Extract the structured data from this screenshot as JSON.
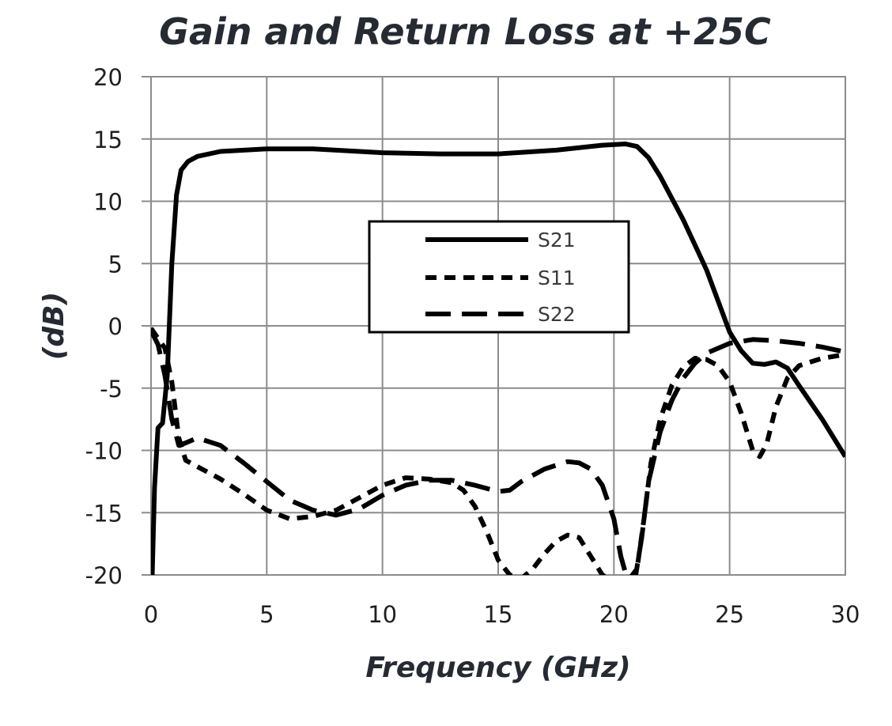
{
  "chart_data": {
    "type": "line",
    "title": "Gain and Return Loss at +25C",
    "xlabel": "Frequency (GHz)",
    "ylabel": "(dB)",
    "xlim": [
      0,
      30
    ],
    "ylim": [
      -20,
      20
    ],
    "xticks": [
      "0",
      "5",
      "10",
      "15",
      "20",
      "25",
      "30"
    ],
    "yticks": [
      "20",
      "15",
      "10",
      "5",
      "0",
      "-5",
      "-10",
      "-15",
      "-20"
    ],
    "grid": true,
    "legend_position": "center",
    "series": [
      {
        "name": "S21",
        "style": "solid",
        "x": [
          0.05,
          0.15,
          0.3,
          0.5,
          0.7,
          0.9,
          1.1,
          1.3,
          1.6,
          2.0,
          3.0,
          5.0,
          7.0,
          10.0,
          12.5,
          15.0,
          17.5,
          19.5,
          20.5,
          21.0,
          21.5,
          22.0,
          23.0,
          24.0,
          25.0,
          25.5,
          26.0,
          26.5,
          27.0,
          27.5,
          28.0,
          29.0,
          30.0
        ],
        "y": [
          -20,
          -13,
          -8.2,
          -7.8,
          -4,
          5,
          10.5,
          12.5,
          13.2,
          13.6,
          14.0,
          14.2,
          14.2,
          13.9,
          13.8,
          13.8,
          14.1,
          14.5,
          14.6,
          14.4,
          13.5,
          12.0,
          8.5,
          4.5,
          -0.5,
          -2.0,
          -3.0,
          -3.1,
          -2.9,
          -3.4,
          -4.8,
          -7.5,
          -10.5
        ]
      },
      {
        "name": "S11",
        "style": "short-dash",
        "x": [
          0.0,
          0.3,
          0.6,
          0.9,
          1.2,
          1.5,
          2.0,
          3.0,
          4.0,
          5.0,
          6.0,
          7.0,
          8.0,
          9.0,
          10.0,
          11.0,
          12.0,
          13.0,
          13.5,
          14.0,
          14.5,
          15.0,
          15.5,
          16.0,
          16.5,
          17.0,
          17.5,
          18.0,
          18.5,
          19.0,
          19.5,
          20.0,
          20.3,
          20.6,
          21.0,
          21.3,
          21.6,
          22.0,
          22.5,
          23.0,
          23.5,
          24.0,
          24.5,
          25.0,
          25.5,
          26.0,
          26.3,
          26.6,
          27.0,
          27.5,
          28.0,
          29.0,
          30.0
        ],
        "y": [
          -0.2,
          -1.0,
          -1.8,
          -4.5,
          -9.0,
          -10.8,
          -11.3,
          -12.3,
          -13.5,
          -14.8,
          -15.5,
          -15.3,
          -14.8,
          -13.8,
          -12.8,
          -12.2,
          -12.3,
          -12.6,
          -13.2,
          -14.5,
          -16.5,
          -18.8,
          -20.0,
          -20.3,
          -19.5,
          -18.3,
          -17.3,
          -16.8,
          -17.0,
          -18.5,
          -20.0,
          -20.5,
          -20.5,
          -20.5,
          -19.5,
          -15.5,
          -11.0,
          -7.5,
          -4.8,
          -3.3,
          -2.6,
          -2.7,
          -3.2,
          -4.5,
          -7.0,
          -10.0,
          -10.5,
          -9.5,
          -6.5,
          -4.2,
          -3.2,
          -2.6,
          -2.3
        ]
      },
      {
        "name": "S22",
        "style": "long-dash",
        "x": [
          0.0,
          0.3,
          0.6,
          0.9,
          1.2,
          1.5,
          2.0,
          3.0,
          4.0,
          5.0,
          6.0,
          7.0,
          8.0,
          9.0,
          10.0,
          11.0,
          12.0,
          13.0,
          14.0,
          15.0,
          15.5,
          16.0,
          17.0,
          18.0,
          18.5,
          19.0,
          19.5,
          20.0,
          20.3,
          20.6,
          20.9,
          21.2,
          21.5,
          22.0,
          22.5,
          23.0,
          23.5,
          24.0,
          25.0,
          26.0,
          27.0,
          28.0,
          29.0,
          30.0
        ],
        "y": [
          -0.4,
          -1.5,
          -4.0,
          -7.5,
          -9.6,
          -9.4,
          -9.0,
          -9.6,
          -11.0,
          -12.5,
          -14.0,
          -14.8,
          -15.2,
          -14.7,
          -13.6,
          -12.8,
          -12.4,
          -12.4,
          -12.8,
          -13.3,
          -13.2,
          -12.5,
          -11.5,
          -10.9,
          -11.0,
          -11.5,
          -12.8,
          -15.5,
          -18.5,
          -20.5,
          -20.5,
          -17.0,
          -12.5,
          -8.5,
          -6.0,
          -4.2,
          -3.0,
          -2.2,
          -1.4,
          -1.1,
          -1.2,
          -1.4,
          -1.7,
          -2.1
        ]
      }
    ]
  }
}
